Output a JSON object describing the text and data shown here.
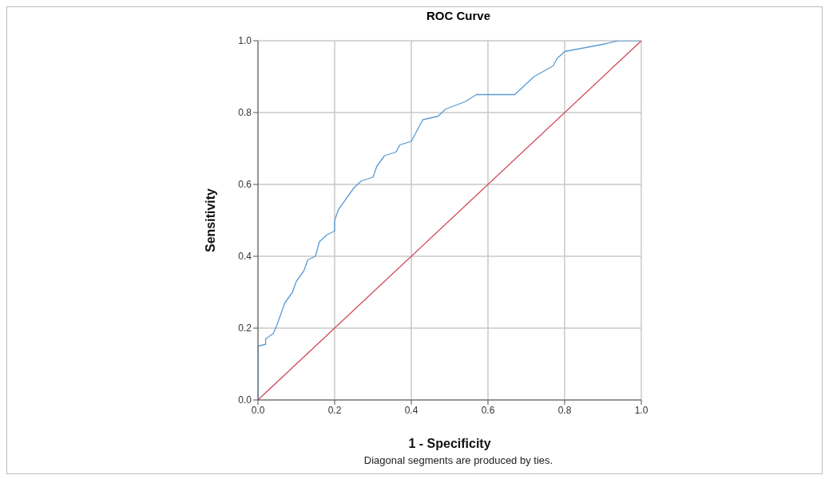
{
  "chart_data": {
    "type": "line",
    "title": "ROC Curve",
    "xlabel": "1 - Specificity",
    "ylabel": "Sensitivity",
    "annotations": [
      "Diagonal segments are produced by ties."
    ],
    "xlim": [
      0,
      1
    ],
    "ylim": [
      0,
      1
    ],
    "xticks": [
      {
        "value": 0,
        "label": "0.0"
      },
      0.2,
      0.4,
      0.6,
      0.8,
      {
        "value": 1,
        "label": "1.0"
      }
    ],
    "yticks": [
      {
        "value": 0,
        "label": "0.0"
      },
      0.2,
      0.4,
      0.6,
      0.8,
      {
        "value": 1,
        "label": "1.0"
      }
    ],
    "grid": true,
    "series": [
      {
        "color": "#5b9bd5",
        "x": [
          0,
          0,
          0.02,
          0.02,
          0.04,
          0.05,
          0.06,
          0.07,
          0.09,
          0.1,
          0.12,
          0.13,
          0.15,
          0.16,
          0.18,
          0.2,
          0.2,
          0.21,
          0.23,
          0.25,
          0.27,
          0.3,
          0.31,
          0.33,
          0.36,
          0.37,
          0.4,
          0.41,
          0.42,
          0.43,
          0.47,
          0.49,
          0.54,
          0.57,
          0.67,
          0.69,
          0.72,
          0.77,
          0.78,
          0.79,
          0.8,
          0.85,
          0.9,
          0.94,
          1
        ],
        "values": [
          0,
          0.15,
          0.155,
          0.17,
          0.185,
          0.21,
          0.24,
          0.27,
          0.3,
          0.33,
          0.36,
          0.39,
          0.4,
          0.44,
          0.46,
          0.47,
          0.5,
          0.53,
          0.56,
          0.59,
          0.61,
          0.62,
          0.65,
          0.68,
          0.69,
          0.71,
          0.72,
          0.74,
          0.76,
          0.78,
          0.79,
          0.81,
          0.83,
          0.85,
          0.85,
          0.87,
          0.9,
          0.93,
          0.95,
          0.96,
          0.97,
          0.98,
          0.99,
          1,
          1
        ]
      },
      {
        "color": "#d04a5a",
        "x": [
          0,
          1
        ],
        "values": [
          0,
          1
        ]
      }
    ]
  }
}
